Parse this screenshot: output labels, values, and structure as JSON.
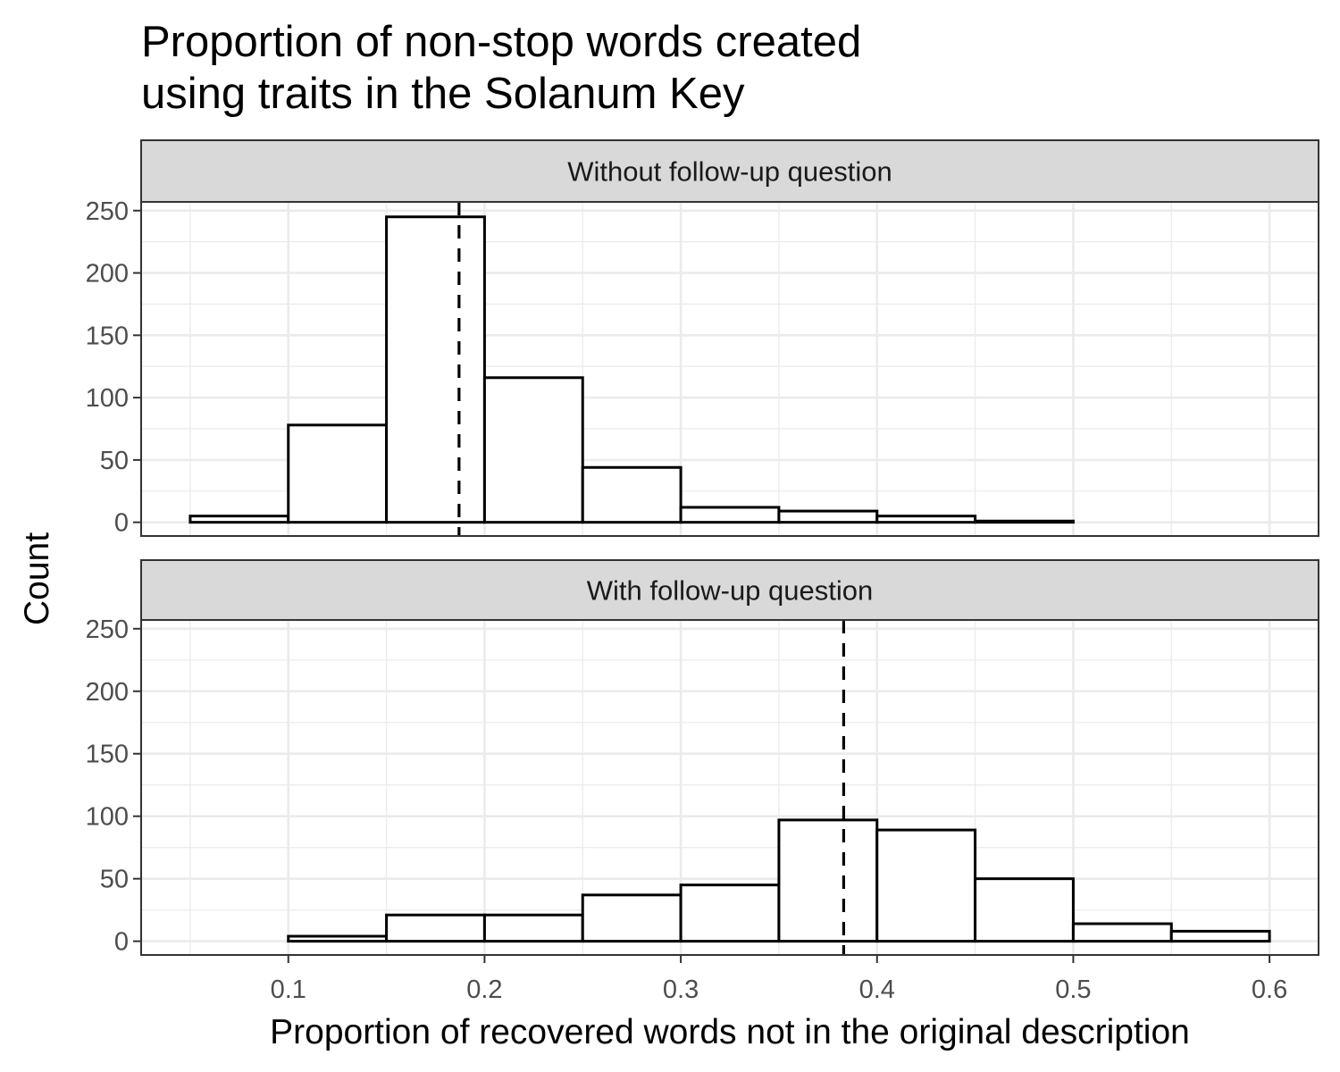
{
  "chart_data": {
    "type": "bar",
    "title_lines": [
      "Proportion of non-stop words created",
      "using traits in the Solanum Key"
    ],
    "xlabel": "Proportion of recovered words not in the original description",
    "ylabel": "Count",
    "xlim": [
      0.025,
      0.625
    ],
    "ylim": [
      -11,
      257
    ],
    "x_ticks": [
      0.1,
      0.2,
      0.3,
      0.4,
      0.5,
      0.6
    ],
    "x_tick_labels": [
      "0.1",
      "0.2",
      "0.3",
      "0.4",
      "0.5",
      "0.6"
    ],
    "y_ticks": [
      0,
      50,
      100,
      150,
      200,
      250
    ],
    "y_tick_labels": [
      "0",
      "50",
      "100",
      "150",
      "200",
      "250"
    ],
    "bin_edges": [
      0.05,
      0.1,
      0.15,
      0.2,
      0.25,
      0.3,
      0.35,
      0.4,
      0.45,
      0.5,
      0.55,
      0.6
    ],
    "grid": true,
    "panels": [
      {
        "label": "Without follow-up question",
        "counts": [
          5,
          78,
          245,
          116,
          44,
          12,
          9,
          5,
          1,
          0,
          0
        ],
        "mean": 0.187
      },
      {
        "label": "With follow-up question",
        "counts": [
          0,
          4,
          21,
          21,
          37,
          45,
          97,
          89,
          50,
          14,
          8
        ],
        "mean": 0.383
      }
    ]
  }
}
